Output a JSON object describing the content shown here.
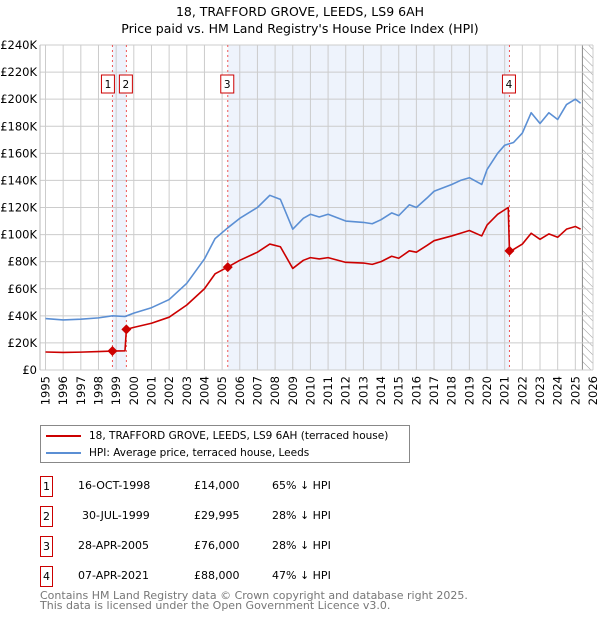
{
  "colors": {
    "property": "#cc0000",
    "hpi": "#5b8fd4",
    "shade": "#eef3fc",
    "marker_line": "#ee5555",
    "grid": "#cccccc"
  },
  "chart_data": {
    "type": "line",
    "title": "18, TRAFFORD GROVE, LEEDS, LS9 6AH",
    "subtitle": "Price paid vs. HM Land Registry's House Price Index (HPI)",
    "xlim": [
      1995,
      2026
    ],
    "ylim": [
      0,
      240000
    ],
    "x_ticks": [
      "1995",
      "1996",
      "1997",
      "1998",
      "1999",
      "2000",
      "2001",
      "2002",
      "2003",
      "2004",
      "2005",
      "2006",
      "2007",
      "2008",
      "2009",
      "2010",
      "2011",
      "2012",
      "2013",
      "2014",
      "2015",
      "2016",
      "2017",
      "2018",
      "2019",
      "2020",
      "2021",
      "2022",
      "2023",
      "2024",
      "2025",
      "2026"
    ],
    "y_ticks": [
      {
        "v": 0,
        "label": "£0"
      },
      {
        "v": 20000,
        "label": "£20K"
      },
      {
        "v": 40000,
        "label": "£40K"
      },
      {
        "v": 60000,
        "label": "£60K"
      },
      {
        "v": 80000,
        "label": "£80K"
      },
      {
        "v": 100000,
        "label": "£100K"
      },
      {
        "v": 120000,
        "label": "£120K"
      },
      {
        "v": 140000,
        "label": "£140K"
      },
      {
        "v": 160000,
        "label": "£160K"
      },
      {
        "v": 180000,
        "label": "£180K"
      },
      {
        "v": 200000,
        "label": "£200K"
      },
      {
        "v": 220000,
        "label": "£220K"
      },
      {
        "v": 240000,
        "label": "£240K"
      }
    ],
    "forecast_hatch_from": 2025.4,
    "series": [
      {
        "name": "18, TRAFFORD GROVE, LEEDS, LS9 6AH (terraced house)",
        "color": "#cc0000",
        "x": [
          1995,
          1996,
          1997,
          1998,
          1998.79,
          1999.5,
          1999.58,
          2000,
          2001,
          2002,
          2003,
          2004,
          2004.6,
          2005.32,
          2006,
          2007,
          2007.7,
          2008.3,
          2009,
          2009.6,
          2010,
          2010.5,
          2011,
          2012,
          2013,
          2013.5,
          2014,
          2014.6,
          2015,
          2015.6,
          2016,
          2016.6,
          2017,
          2018,
          2018.5,
          2019,
          2019.7,
          2020,
          2020.6,
          2021.2,
          2021.27,
          2021.5,
          2022,
          2022.5,
          2023,
          2023.5,
          2024,
          2024.5,
          2025,
          2025.3
        ],
        "y": [
          13300,
          13000,
          13200,
          13600,
          14000,
          14200,
          29995,
          31500,
          34500,
          39000,
          48000,
          60000,
          71000,
          76000,
          81000,
          87000,
          93000,
          91000,
          75000,
          81000,
          83000,
          82000,
          83000,
          79500,
          79000,
          78000,
          80000,
          84000,
          82500,
          88000,
          87000,
          92000,
          95500,
          99000,
          101000,
          103000,
          99000,
          107000,
          115000,
          120000,
          88000,
          89000,
          93000,
          101000,
          96500,
          100500,
          98000,
          104000,
          106000,
          104000
        ]
      },
      {
        "name": "HPI: Average price, terraced house, Leeds",
        "color": "#5b8fd4",
        "x": [
          1995,
          1996,
          1997,
          1998,
          1998.79,
          1999.5,
          2000,
          2001,
          2002,
          2003,
          2004,
          2004.6,
          2005.32,
          2006,
          2007,
          2007.7,
          2008.3,
          2009,
          2009.6,
          2010,
          2010.5,
          2011,
          2012,
          2013,
          2013.5,
          2014,
          2014.6,
          2015,
          2015.6,
          2016,
          2016.6,
          2017,
          2018,
          2018.5,
          2019,
          2019.7,
          2020,
          2020.6,
          2021,
          2021.5,
          2022,
          2022.5,
          2023,
          2023.5,
          2024,
          2024.5,
          2025,
          2025.3
        ],
        "y": [
          38000,
          37000,
          37500,
          38500,
          40000,
          39500,
          42000,
          46000,
          52000,
          64000,
          82000,
          97000,
          105000,
          112000,
          120000,
          129000,
          126000,
          104000,
          112000,
          115000,
          113000,
          115000,
          110000,
          109000,
          108000,
          111000,
          116000,
          114000,
          122000,
          120000,
          127000,
          132000,
          137000,
          140000,
          142000,
          137000,
          148000,
          160000,
          166000,
          168000,
          175000,
          190000,
          182000,
          190000,
          185000,
          196000,
          200000,
          197000
        ]
      }
    ],
    "sales": [
      {
        "id": "1",
        "x": 1998.79,
        "y": 14000,
        "date": "16-OCT-1998",
        "price": "£14,000",
        "hpi": "65% ↓ HPI"
      },
      {
        "id": "2",
        "x": 1999.58,
        "y": 29995,
        "date": "30-JUL-1999",
        "price": "£29,995",
        "hpi": "28% ↓ HPI"
      },
      {
        "id": "3",
        "x": 2005.32,
        "y": 76000,
        "date": "28-APR-2005",
        "price": "£76,000",
        "hpi": "28% ↓ HPI"
      },
      {
        "id": "4",
        "x": 2021.27,
        "y": 88000,
        "date": "07-APR-2021",
        "price": "£88,000",
        "hpi": "47% ↓ HPI"
      }
    ],
    "legend": {
      "placement": "below",
      "items": [
        "18, TRAFFORD GROVE, LEEDS, LS9 6AH (terraced house)",
        "HPI: Average price, terraced house, Leeds"
      ]
    }
  },
  "footer": {
    "line1": "Contains HM Land Registry data © Crown copyright and database right 2025.",
    "line2": "This data is licensed under the Open Government Licence v3.0."
  }
}
